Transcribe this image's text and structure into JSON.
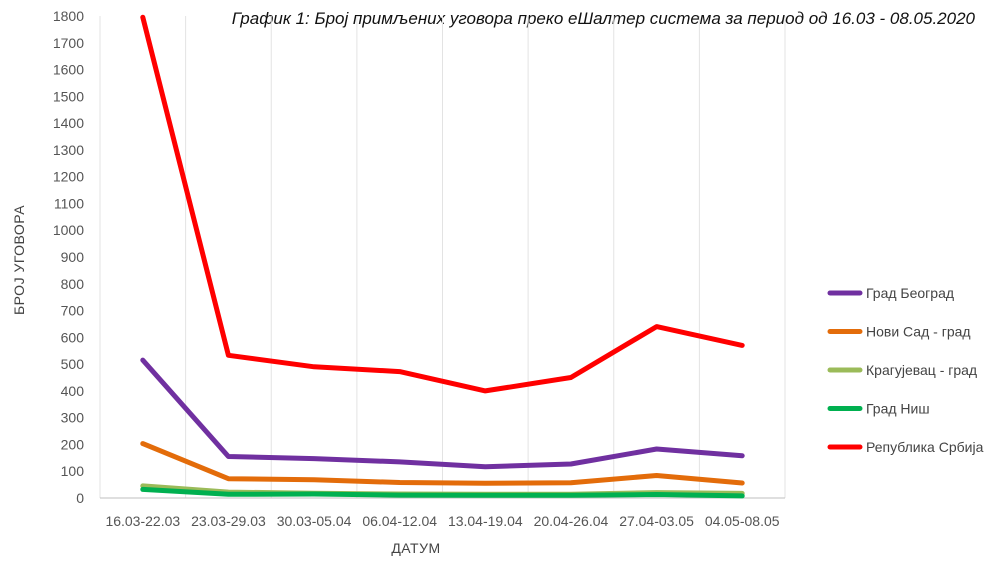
{
  "chart_data": {
    "type": "line",
    "title": "График 1: Број примљених уговора преко еШалтер система за период од 16.03 - 08.05.2020",
    "xlabel": "ДАТУМ",
    "ylabel": "БРОЈ УГОВОРА",
    "categories": [
      "16.03-22.03",
      "23.03-29.03",
      "30.03-05.04",
      "06.04-12.04",
      "13.04-19.04",
      "20.04-26.04",
      "27.04-03.05",
      "04.05-08.05"
    ],
    "ylim": [
      0,
      1800
    ],
    "yticks": [
      0,
      100,
      200,
      300,
      400,
      500,
      600,
      700,
      800,
      900,
      1000,
      1100,
      1200,
      1300,
      1400,
      1500,
      1600,
      1700,
      1800
    ],
    "grid": "vertical",
    "legend": "right",
    "series": [
      {
        "name": "Град Београд",
        "color": "#7030A0",
        "values": [
          515,
          155,
          147,
          135,
          117,
          127,
          183,
          158
        ]
      },
      {
        "name": "Нови Сад - град",
        "color": "#E36C0A",
        "values": [
          203,
          72,
          68,
          58,
          55,
          57,
          84,
          56
        ]
      },
      {
        "name": "Крагујевац - град",
        "color": "#9BBB59",
        "values": [
          45,
          22,
          18,
          15,
          14,
          14,
          20,
          17
        ]
      },
      {
        "name": "Град Ниш",
        "color": "#00B050",
        "values": [
          32,
          14,
          15,
          11,
          10,
          10,
          13,
          8
        ]
      },
      {
        "name": "Република Србија",
        "color": "#FF0000",
        "values": [
          1795,
          533,
          490,
          472,
          400,
          450,
          640,
          570
        ]
      }
    ]
  }
}
